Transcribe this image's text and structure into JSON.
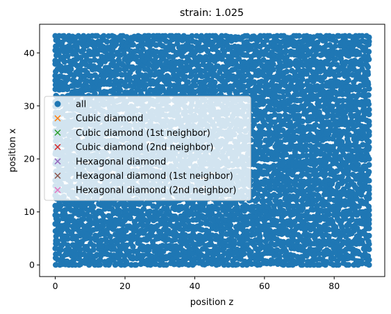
{
  "chart_data": {
    "type": "scatter",
    "title": "strain: 1.025",
    "xlabel": "position z",
    "ylabel": "position x",
    "xlim": [
      -4.5,
      94.5
    ],
    "ylim": [
      -2.2,
      45.4
    ],
    "xticks": [
      0,
      20,
      40,
      60,
      80
    ],
    "yticks": [
      0,
      10,
      20,
      30,
      40
    ],
    "grid": false,
    "legend_position": "center-left",
    "point_extent": {
      "x": [
        0,
        90
      ],
      "y": [
        0,
        43.2
      ]
    },
    "series": [
      {
        "name": "all",
        "marker": "o",
        "color": "#1f77b4"
      },
      {
        "name": "Cubic diamond",
        "marker": "x",
        "color": "#ff7f0e"
      },
      {
        "name": "Cubic diamond (1st neighbor)",
        "marker": "x",
        "color": "#2ca02c"
      },
      {
        "name": "Cubic diamond (2nd neighbor)",
        "marker": "x",
        "color": "#d62728"
      },
      {
        "name": "Hexagonal diamond",
        "marker": "x",
        "color": "#9467bd"
      },
      {
        "name": "Hexagonal diamond (1st neighbor)",
        "marker": "x",
        "color": "#8c564b"
      },
      {
        "name": "Hexagonal diamond (2nd neighbor)",
        "marker": "x",
        "color": "#e377c2"
      }
    ]
  }
}
